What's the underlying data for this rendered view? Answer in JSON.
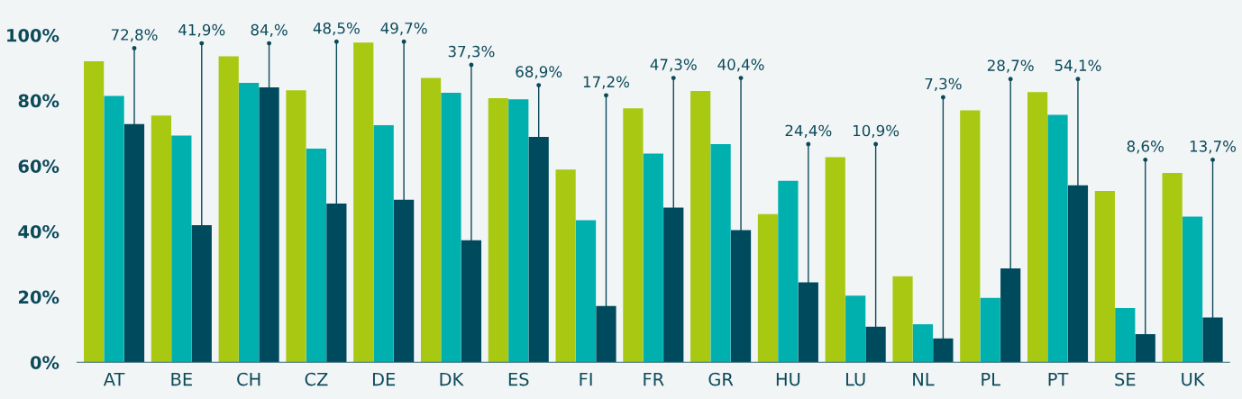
{
  "chart_data": {
    "type": "bar",
    "categories": [
      "AT",
      "BE",
      "CH",
      "CZ",
      "DE",
      "DK",
      "ES",
      "FI",
      "FR",
      "GR",
      "HU",
      "LU",
      "NL",
      "PL",
      "PT",
      "SE",
      "UK"
    ],
    "series": [
      {
        "color": "#a8c812",
        "values": [
          92.0,
          75.4,
          93.5,
          83.1,
          97.7,
          86.9,
          80.7,
          58.9,
          77.6,
          82.9,
          45.3,
          62.7,
          26.3,
          77.0,
          82.6,
          52.4,
          57.9
        ]
      },
      {
        "color": "#00b0ae",
        "values": [
          81.4,
          69.3,
          85.4,
          65.3,
          72.5,
          82.4,
          80.4,
          43.4,
          63.8,
          66.7,
          55.5,
          20.4,
          11.6,
          19.7,
          75.6,
          16.6,
          44.5
        ]
      },
      {
        "color": "#004a5d",
        "values": [
          72.8,
          41.9,
          84,
          48.5,
          49.7,
          37.3,
          68.9,
          17.2,
          47.3,
          40.4,
          24.4,
          10.9,
          7.3,
          28.7,
          54.1,
          8.6,
          13.7
        ],
        "value_labels": [
          "72,8%",
          "41,9%",
          "84,%",
          "48,5%",
          "49,7%",
          "37,3%",
          "68,9%",
          "17,2%",
          "47,3%",
          "40,4%",
          "24,4%",
          "10,9%",
          "7,3%",
          "28,7%",
          "54,1%",
          "8,6%",
          "13,7%"
        ]
      }
    ],
    "ylim": [
      0,
      100
    ],
    "yticks": [
      {
        "value": 0,
        "label": "0%"
      },
      {
        "value": 20,
        "label": "20%"
      },
      {
        "value": 40,
        "label": "40%"
      },
      {
        "value": 60,
        "label": "60%"
      },
      {
        "value": 80,
        "label": "80%"
      },
      {
        "value": 100,
        "label": "100%"
      }
    ],
    "grid": false,
    "legend": false
  }
}
